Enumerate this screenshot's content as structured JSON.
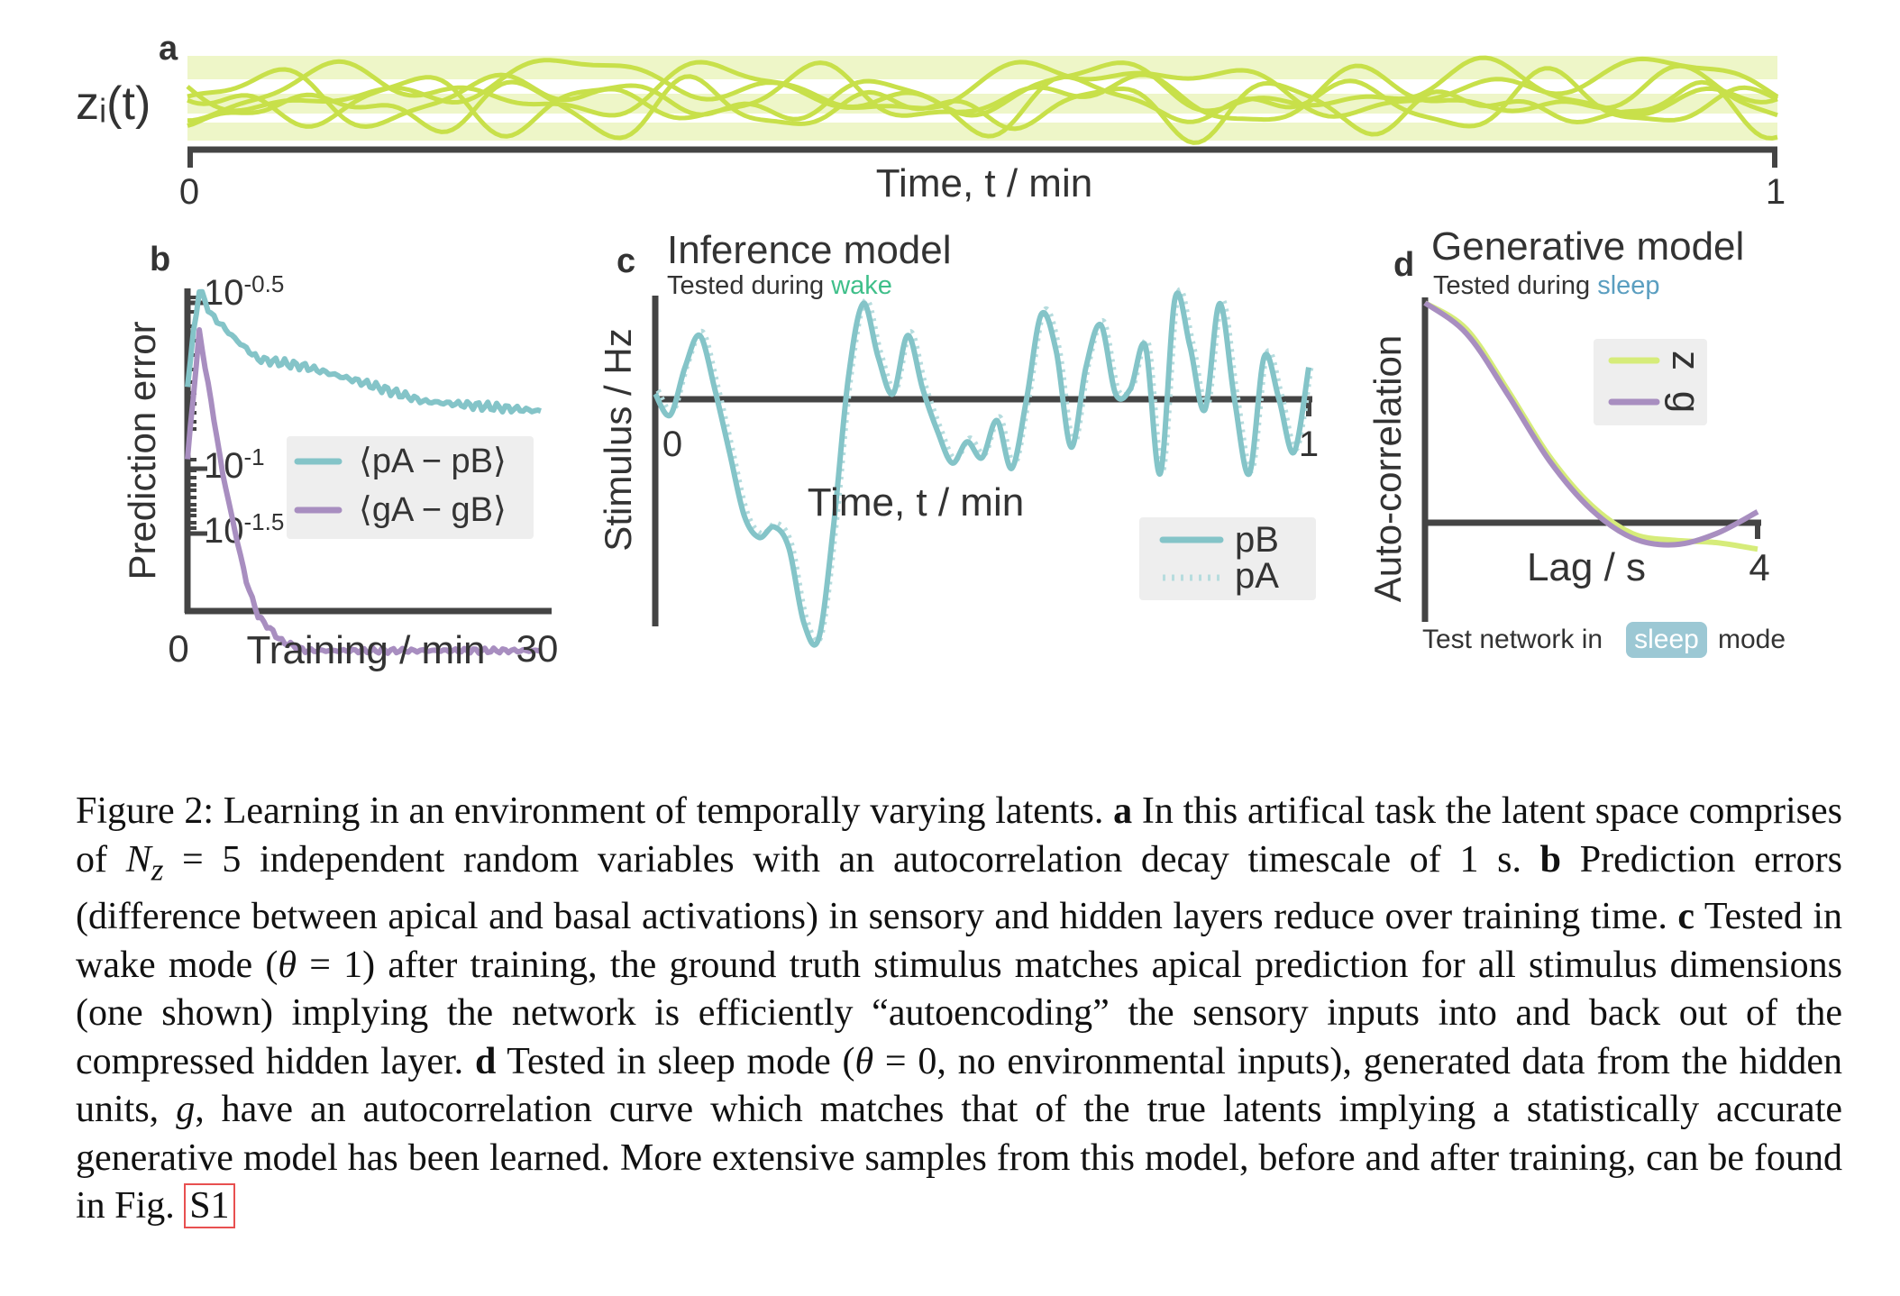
{
  "colors": {
    "latent": "#c8e04a",
    "latent_band": "#eef6c8",
    "teal": "#84c4c8",
    "purple": "#a88ec0",
    "lime": "#d6ec7a",
    "axis": "#444444",
    "wake": "#3fbf8a",
    "sleep": "#5a9ec0",
    "badge_bg": "#9cc8d4",
    "legend_bg": "#eeeeee",
    "ref_box": "#e85050"
  },
  "chart_data": [
    {
      "panel": "a",
      "type": "line",
      "ylabel": "zᵢ(t)",
      "xlabel": "Time, t / min",
      "xlim": [
        0,
        1
      ],
      "ticks": [
        "0",
        "1"
      ],
      "n_series": 5
    },
    {
      "panel": "b",
      "type": "line",
      "xlabel": "Training / min",
      "ylabel": "Prediction error",
      "xlim": [
        0,
        30
      ],
      "xticks": [
        "0",
        "30"
      ],
      "yscale": "log",
      "yticks": [
        {
          "base": "10",
          "exp": "-0.5"
        },
        {
          "base": "10",
          "exp": "-1"
        },
        {
          "base": "10",
          "exp": "-1.5"
        }
      ],
      "series": [
        {
          "name": "⟨pA − pB⟩",
          "x": [
            0,
            1,
            2,
            4,
            6,
            10,
            15,
            20,
            25,
            30
          ],
          "values": [
            0.18,
            0.33,
            0.28,
            0.24,
            0.21,
            0.2,
            0.18,
            0.16,
            0.155,
            0.15
          ]
        },
        {
          "name": "⟨gA − gB⟩",
          "x": [
            0,
            1,
            2,
            3,
            4,
            5,
            6,
            8,
            10,
            15,
            20,
            25,
            30
          ],
          "values": [
            0.11,
            0.25,
            0.16,
            0.1,
            0.07,
            0.05,
            0.04,
            0.034,
            0.032,
            0.032,
            0.032,
            0.032,
            0.032
          ]
        }
      ]
    },
    {
      "panel": "c",
      "type": "line",
      "title": "Inference model",
      "subtitle": "Tested during",
      "subtitle_highlight": "wake",
      "xlabel": "Time, t  / min",
      "ylabel": "Stimulus / Hz",
      "xticks": [
        "0",
        "1"
      ],
      "series": [
        {
          "name": "pB",
          "style": "solid"
        },
        {
          "name": "pA",
          "style": "dotted"
        }
      ],
      "values": [
        0.05,
        -0.15,
        0.3,
        0.6,
        0.1,
        -0.5,
        -1.1,
        -1.3,
        -1.2,
        -1.4,
        -2.1,
        -2.25,
        -1.2,
        0.2,
        0.9,
        0.4,
        0.05,
        0.6,
        0.1,
        -0.3,
        -0.6,
        -0.4,
        -0.55,
        -0.2,
        -0.65,
        0.0,
        0.8,
        0.45,
        -0.45,
        0.3,
        0.7,
        0.05,
        0.1,
        0.5,
        -0.7,
        0.95,
        0.5,
        -0.1,
        0.9,
        0.0,
        -0.7,
        0.4,
        0.0,
        -0.5,
        0.3
      ]
    },
    {
      "panel": "d",
      "type": "line",
      "title": "Generative model",
      "subtitle": "Tested during",
      "subtitle_highlight": "sleep",
      "xlabel": "Lag / s",
      "ylabel": "Auto-correlation",
      "xlim": [
        0,
        4
      ],
      "xticks": [
        "4"
      ],
      "footer_pre": "Test network in",
      "footer_badge": "sleep",
      "footer_post": "mode",
      "series": [
        {
          "name": "z",
          "x": [
            0,
            0.5,
            1,
            1.5,
            2,
            2.5,
            3,
            3.5,
            4
          ],
          "values": [
            1.0,
            0.88,
            0.6,
            0.3,
            0.08,
            -0.05,
            -0.08,
            -0.09,
            -0.12
          ]
        },
        {
          "name": "g",
          "x": [
            0,
            0.5,
            1,
            1.5,
            2,
            2.5,
            3,
            3.5,
            4
          ],
          "values": [
            1.0,
            0.86,
            0.58,
            0.28,
            0.06,
            -0.07,
            -0.1,
            -0.05,
            0.05
          ]
        }
      ]
    }
  ],
  "caption": {
    "lead": "Figure 2:  Learning in an environment of temporally varying latents.",
    "a_tag": "a",
    "a_text": "In this artifical task the latent space comprises of",
    "nz": "N",
    "nz_sub": "z",
    "nz_rest": "= 5",
    "a_text2": "independent random variables with an autocorrelation decay timescale of 1 s.",
    "b_tag": "b",
    "b_text": "Prediction errors (difference between apical and basal activations) in sensory and hidden layers reduce over training time.",
    "c_tag": "c",
    "c_text": "Tested in wake mode (",
    "c_theta": "θ",
    "c_eq": " = 1)",
    "c_text2": "after training, the ground truth stimulus matches apical prediction for all stimulus dimensions (one shown) implying the network is efficiently “autoencoding” the sensory inputs into and back out of the compressed hidden layer.",
    "d_tag": "d",
    "d_text": "Tested in sleep mode (",
    "d_theta": "θ",
    "d_eq": " = 0,",
    "d_text2": "no environmental inputs), generated data from the hidden units,",
    "d_g": "g",
    "d_text3": ", have an autocorrelation curve which matches that of the true latents implying a statistically accurate generative model has been learned. More extensive samples from this model, before and after training, can be found in Fig.",
    "ref": "S1"
  }
}
